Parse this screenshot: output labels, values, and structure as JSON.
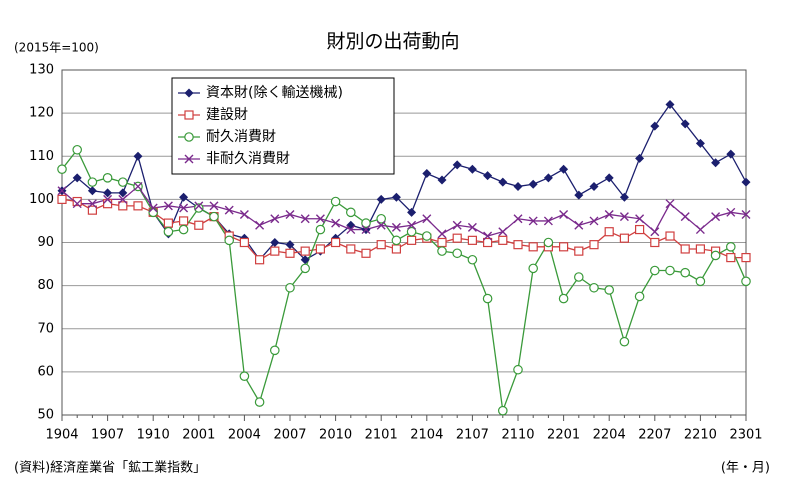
{
  "chart_data": {
    "type": "line",
    "title": "財別の出荷動向",
    "y_label": "(2015年=100)",
    "source": "(資料)経済産業省「鉱工業指数」",
    "x_label": "(年・月)",
    "categories": [
      "1904",
      null,
      null,
      "1907",
      null,
      null,
      "1910",
      null,
      null,
      "2001",
      null,
      null,
      "2004",
      null,
      null,
      "2007",
      null,
      null,
      "2010",
      null,
      null,
      "2101",
      null,
      null,
      "2104",
      null,
      null,
      "2107",
      null,
      null,
      "2110",
      null,
      null,
      "2201",
      null,
      null,
      "2204",
      null,
      null,
      "2207",
      null,
      null,
      "2210",
      null,
      null,
      "2301"
    ],
    "series": [
      {
        "name": "資本財(除く輸送機械)",
        "color": "#1b1f6e",
        "marker": "diamond",
        "values": [
          102,
          105,
          102,
          101.5,
          101.5,
          110,
          97,
          92,
          100.5,
          98,
          96,
          92,
          91,
          86,
          90,
          89.5,
          86,
          88,
          91,
          94,
          93,
          100,
          100.5,
          97,
          106,
          104.5,
          108,
          107,
          105.5,
          104,
          103,
          103.5,
          105,
          107,
          101,
          103,
          105,
          100.5,
          109.5,
          117,
          122,
          117.5,
          113,
          108.5,
          110.5,
          104
        ]
      },
      {
        "name": "建設財",
        "color": "#d04040",
        "marker": "square",
        "values": [
          100,
          99.5,
          97.5,
          99,
          98.5,
          98.5,
          97,
          94.5,
          95,
          94,
          96,
          91.5,
          90,
          86,
          88,
          87.5,
          88,
          88.5,
          90,
          88.5,
          87.5,
          89.5,
          88.5,
          90.5,
          91,
          90,
          91,
          90.5,
          90,
          90.5,
          89.5,
          89,
          89,
          89,
          88,
          89.5,
          92.5,
          91,
          93,
          90,
          91.5,
          88.5,
          88.5,
          88,
          86.5,
          86.5
        ]
      },
      {
        "name": "耐久消費財",
        "color": "#3a9a3a",
        "marker": "circle",
        "values": [
          107,
          111.5,
          104,
          105,
          104,
          103,
          97,
          92.5,
          93,
          98,
          96,
          90.5,
          59,
          53,
          65,
          79.5,
          84,
          93,
          99.5,
          97,
          94.5,
          95.5,
          90.5,
          92.5,
          91.5,
          88,
          87.5,
          86,
          77,
          51,
          60.5,
          84,
          90,
          77,
          82,
          79.5,
          79,
          67,
          77.5,
          83.5,
          83.5,
          83,
          81,
          87,
          89,
          81
        ]
      },
      {
        "name": "非耐久消費財",
        "color": "#7a2a8c",
        "marker": "x",
        "values": [
          102,
          99,
          99,
          100,
          100,
          103,
          98,
          98.5,
          98,
          98.5,
          98.5,
          97.5,
          96.5,
          94,
          95.5,
          96.5,
          95.5,
          95.5,
          94.5,
          93,
          93,
          94,
          93.5,
          94,
          95.5,
          92,
          94,
          93.5,
          91.5,
          92.5,
          95.5,
          95,
          95,
          96.5,
          94,
          95,
          96.5,
          96,
          95.5,
          92.5,
          99,
          96,
          93,
          96,
          97,
          96.5
        ]
      }
    ],
    "ylim": [
      50,
      130
    ],
    "yticks": [
      50,
      60,
      70,
      80,
      90,
      100,
      110,
      120,
      130
    ],
    "grid": true,
    "legend": "upper left"
  }
}
